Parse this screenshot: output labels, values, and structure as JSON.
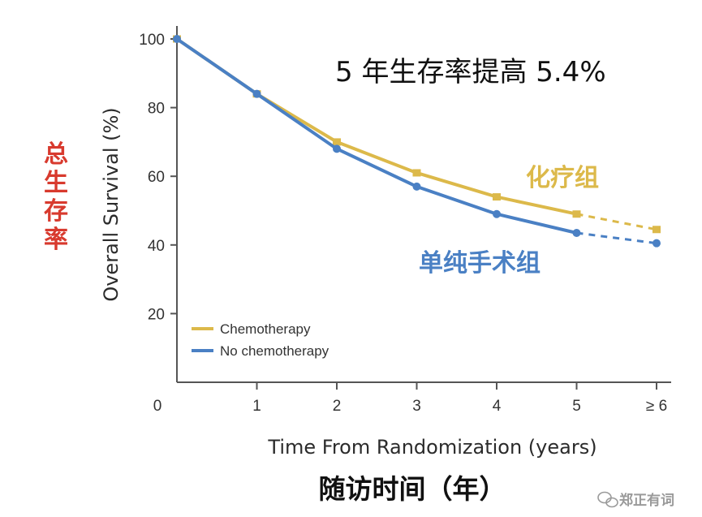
{
  "chart_data": {
    "type": "line",
    "title": "5 年生存率提高 5.4%",
    "xlabel": "Time From Randomization (years)",
    "xlabel_cn": "随访时间（年）",
    "ylabel": "Overall Survival (%)",
    "ylabel_cn": "总生存率",
    "categories": [
      "0",
      "1",
      "2",
      "3",
      "4",
      "5",
      "≥ 6"
    ],
    "yticks": [
      "100",
      "80",
      "60",
      "40",
      "20"
    ],
    "ylim": [
      0,
      100
    ],
    "grid": false,
    "legend_position": "bottom-left",
    "series": [
      {
        "name": "Chemotherapy",
        "name_cn": "化疗组",
        "color": "#dcb94a",
        "label_color": "#dcb94a",
        "values": [
          100,
          84,
          70,
          61,
          54,
          49,
          44.5
        ],
        "dashed_from_index": 5
      },
      {
        "name": "No chemotherapy",
        "name_cn": "单纯手术组",
        "color": "#4a80c4",
        "label_color": "#4a80c4",
        "values": [
          100,
          84,
          68,
          57,
          49,
          43.5,
          40.5
        ],
        "dashed_from_index": 5
      }
    ]
  },
  "ylabel_cn_color": "#d83a2e",
  "watermark": {
    "text": "郑正有词",
    "icon": "wechat-icon"
  }
}
